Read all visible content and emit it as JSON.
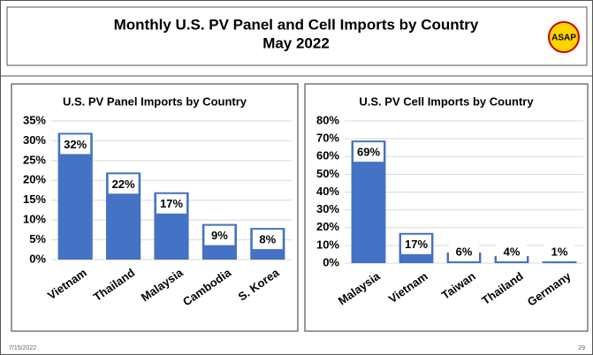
{
  "slide": {
    "title_line1": "Monthly U.S. PV Panel and Cell Imports by Country",
    "title_line2": "May 2022",
    "logo": "ASAP",
    "date": "7/15/2022",
    "page": "29"
  },
  "chart_data": [
    {
      "type": "bar",
      "title": "U.S. PV Panel Imports by Country",
      "color": "#4472c4",
      "categories": [
        "Vietnam",
        "Thailand",
        "Malaysia",
        "Cambodia",
        "S. Korea"
      ],
      "values": [
        32,
        22,
        17,
        9,
        8
      ],
      "value_labels": [
        "32%",
        "22%",
        "17%",
        "9%",
        "8%"
      ],
      "ylim": [
        0,
        35
      ],
      "yticks": [
        {
          "value": 0,
          "label": "0%"
        },
        {
          "value": 5,
          "label": "5%"
        },
        {
          "value": 10,
          "label": "10%"
        },
        {
          "value": 15,
          "label": "15%"
        },
        {
          "value": 20,
          "label": "20%"
        },
        {
          "value": 25,
          "label": "25%"
        },
        {
          "value": 30,
          "label": "30%"
        },
        {
          "value": 35,
          "label": "35%"
        }
      ],
      "grid": true
    },
    {
      "type": "bar",
      "title": "U.S. PV Cell Imports by Country",
      "color": "#4472c4",
      "categories": [
        "Malaysia",
        "Vietnam",
        "Taiwan",
        "Thailand",
        "Germany"
      ],
      "values": [
        69,
        17,
        6,
        4,
        1
      ],
      "value_labels": [
        "69%",
        "17%",
        "6%",
        "4%",
        "1%"
      ],
      "ylim": [
        0,
        80
      ],
      "yticks": [
        {
          "value": 0,
          "label": "0%"
        },
        {
          "value": 10,
          "label": "10%"
        },
        {
          "value": 20,
          "label": "20%"
        },
        {
          "value": 30,
          "label": "30%"
        },
        {
          "value": 40,
          "label": "40%"
        },
        {
          "value": 50,
          "label": "50%"
        },
        {
          "value": 60,
          "label": "60%"
        },
        {
          "value": 70,
          "label": "70%"
        },
        {
          "value": 80,
          "label": "80%"
        }
      ],
      "grid": true
    }
  ]
}
